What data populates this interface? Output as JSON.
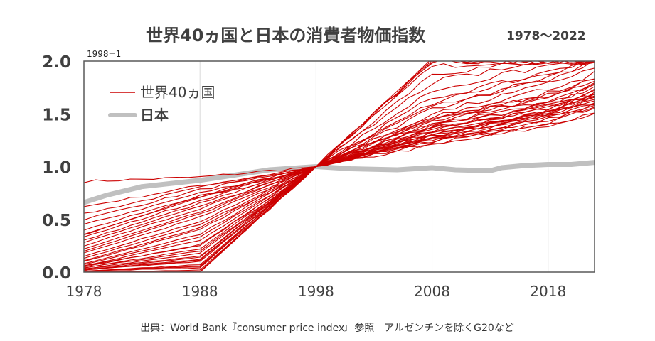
{
  "chart_data": {
    "type": "line",
    "title": "世界40ヵ国と日本の消費者物価指数",
    "title_range": "1978～2022",
    "index_note": "1998=1",
    "source": "出典：World Bank『consumer price index』参照　アルゼンチンを除くG20など",
    "x_ticks": [
      "1978",
      "1988",
      "1998",
      "2008",
      "2018"
    ],
    "y_ticks": [
      "0.0",
      "0.5",
      "1.0",
      "1.5",
      "2.0"
    ],
    "xlim": [
      1978,
      2022
    ],
    "ylim": [
      0,
      2
    ],
    "grid": "vertical",
    "legend_position": "top-left",
    "colors": {
      "world": "#cc0000",
      "japan": "#c0c0c0"
    },
    "series": [
      {
        "name": "世界40ヵ国",
        "group": "world",
        "x": [
          1978,
          1988,
          1998,
          2008,
          2018,
          2022
        ],
        "lines": [
          [
            0.86,
            0.9,
            1.0,
            1.28,
            1.5,
            1.68
          ],
          [
            0.62,
            0.82,
            1.0,
            1.25,
            1.45,
            1.6
          ],
          [
            0.55,
            0.8,
            1.0,
            1.22,
            1.4,
            1.5
          ],
          [
            0.5,
            0.78,
            1.0,
            1.3,
            1.55,
            1.72
          ],
          [
            0.45,
            0.75,
            1.0,
            1.24,
            1.42,
            1.58
          ],
          [
            0.4,
            0.72,
            1.0,
            1.27,
            1.48,
            1.62
          ],
          [
            0.36,
            0.7,
            1.0,
            1.2,
            1.38,
            1.52
          ],
          [
            0.33,
            0.68,
            1.0,
            1.32,
            1.52,
            1.65
          ],
          [
            0.3,
            0.65,
            1.0,
            1.26,
            1.44,
            1.6
          ],
          [
            0.28,
            0.62,
            1.0,
            1.29,
            1.5,
            1.64
          ],
          [
            0.25,
            0.6,
            1.0,
            1.23,
            1.46,
            1.55
          ],
          [
            0.22,
            0.57,
            1.0,
            1.31,
            1.53,
            1.7
          ],
          [
            0.2,
            0.55,
            1.0,
            1.34,
            1.56,
            1.66
          ],
          [
            0.18,
            0.52,
            1.0,
            1.28,
            1.47,
            1.58
          ],
          [
            0.15,
            0.48,
            1.0,
            1.36,
            1.6,
            1.75
          ],
          [
            0.13,
            0.45,
            1.0,
            1.3,
            1.49,
            1.62
          ],
          [
            0.11,
            0.42,
            1.0,
            1.38,
            1.58,
            1.68
          ],
          [
            0.1,
            0.4,
            1.0,
            1.33,
            1.52,
            1.74
          ],
          [
            0.08,
            0.36,
            1.0,
            1.4,
            1.62,
            1.8
          ],
          [
            0.07,
            0.33,
            1.0,
            1.35,
            1.54,
            1.7
          ],
          [
            0.06,
            0.3,
            1.0,
            1.42,
            1.66,
            1.85
          ],
          [
            0.05,
            0.26,
            1.0,
            1.37,
            1.57,
            1.68
          ],
          [
            0.04,
            0.22,
            1.0,
            1.45,
            1.7,
            1.82
          ],
          [
            0.03,
            0.18,
            1.0,
            1.39,
            1.6,
            1.76
          ],
          [
            0.02,
            0.14,
            1.0,
            1.48,
            1.74,
            1.88
          ],
          [
            0.02,
            0.1,
            1.0,
            1.44,
            1.68,
            1.8
          ],
          [
            0.01,
            0.07,
            1.0,
            1.5,
            1.78,
            1.95
          ],
          [
            0.01,
            0.05,
            1.0,
            1.55,
            1.85,
            2.0
          ],
          [
            0.06,
            0.25,
            1.0,
            1.6,
            1.9,
            2.0
          ],
          [
            0.04,
            0.2,
            1.0,
            1.65,
            1.88,
            2.0
          ],
          [
            0.03,
            0.15,
            1.0,
            1.72,
            1.96,
            2.0
          ],
          [
            0.02,
            0.11,
            1.0,
            1.8,
            2.0,
            2.0
          ],
          [
            0.01,
            0.06,
            1.0,
            1.88,
            2.0,
            2.0
          ],
          [
            0.01,
            0.04,
            1.0,
            1.95,
            2.0,
            2.0
          ],
          [
            0.0,
            0.02,
            1.0,
            2.0,
            2.0,
            2.0
          ],
          [
            0.0,
            0.01,
            1.0,
            2.0,
            2.0,
            2.0
          ],
          [
            0.02,
            0.12,
            1.0,
            1.58,
            1.82,
            2.0
          ],
          [
            0.0,
            0.0,
            1.0,
            2.0,
            2.0,
            2.0
          ],
          [
            0.35,
            0.72,
            1.0,
            1.45,
            1.64,
            1.78
          ],
          [
            0.0,
            0.0,
            1.0,
            2.0,
            2.0,
            2.0
          ]
        ]
      },
      {
        "name": "日本",
        "group": "japan",
        "x": [
          1978,
          1980,
          1983,
          1988,
          1991,
          1994,
          1998,
          2001,
          2005,
          2008,
          2010,
          2013,
          2014,
          2016,
          2018,
          2020,
          2022
        ],
        "values": [
          0.66,
          0.73,
          0.81,
          0.87,
          0.92,
          0.97,
          1.0,
          0.98,
          0.97,
          0.99,
          0.97,
          0.96,
          0.99,
          1.01,
          1.02,
          1.02,
          1.04
        ]
      }
    ]
  }
}
